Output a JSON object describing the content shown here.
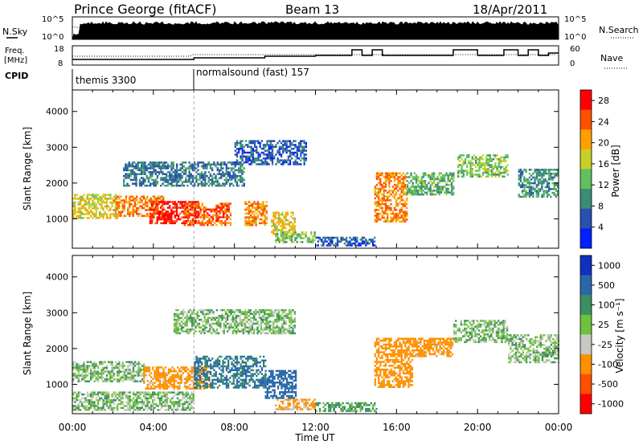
{
  "header": {
    "title": "Prince George (fitACF)",
    "beam": "Beam 13",
    "date": "18/Apr/2011"
  },
  "top_panels": {
    "nsky": {
      "label": "N.Sky",
      "y_ticks": [
        "10^5",
        "10^0"
      ]
    },
    "nsearch": {
      "label": "N.Search",
      "y_ticks": [
        "10^5",
        "10^0"
      ]
    },
    "freq": {
      "label_line1": "Freq.",
      "label_line2": "[MHz]",
      "y_ticks": [
        "18",
        "8"
      ]
    },
    "nave": {
      "label": "Nave",
      "y_ticks": [
        "60",
        "0"
      ]
    },
    "cpid": {
      "label": "CPID",
      "segments": [
        {
          "name": "themis 3300",
          "start_hour": 0
        },
        {
          "name": "normalsound (fast) 157",
          "start_hour": 6
        }
      ]
    }
  },
  "chart_data": [
    {
      "type": "heatmap",
      "title": "Power",
      "ylabel": "Slant Range [km]",
      "xlabel": "Time UT",
      "x_ticks": [
        "00:00",
        "04:00",
        "08:00",
        "12:00",
        "16:00",
        "20:00",
        "00:00"
      ],
      "xlim_hours": [
        0,
        24
      ],
      "ylim": [
        180,
        4600
      ],
      "y_ticks": [
        1000,
        2000,
        3000,
        4000
      ],
      "colorbar": {
        "label": "Power [dB]",
        "ticks": [
          "4",
          "8",
          "12",
          "16",
          "20",
          "24",
          "28"
        ],
        "range": [
          0,
          30
        ],
        "colors": [
          "#0020ff",
          "#2850b0",
          "#3c8c78",
          "#5fc060",
          "#c8d028",
          "#ffa000",
          "#ff5000",
          "#ff0000"
        ]
      },
      "regions": [
        {
          "t0": 0.0,
          "t1": 2.2,
          "r0": 1050,
          "r1": 1700,
          "value": 18
        },
        {
          "t0": 2.0,
          "t1": 4.5,
          "r0": 1100,
          "r1": 1650,
          "value": 22
        },
        {
          "t0": 3.8,
          "t1": 6.2,
          "r0": 900,
          "r1": 1500,
          "value": 28
        },
        {
          "t0": 5.5,
          "t1": 7.8,
          "r0": 850,
          "r1": 1450,
          "value": 24
        },
        {
          "t0": 8.5,
          "t1": 9.6,
          "r0": 800,
          "r1": 1500,
          "value": 22
        },
        {
          "t0": 9.8,
          "t1": 11.0,
          "r0": 600,
          "r1": 1200,
          "value": 18
        },
        {
          "t0": 10.0,
          "t1": 12.0,
          "r0": 350,
          "r1": 650,
          "value": 14
        },
        {
          "t0": 14.9,
          "t1": 16.5,
          "r0": 900,
          "r1": 2300,
          "value": 22
        },
        {
          "t0": 16.5,
          "t1": 18.8,
          "r0": 1700,
          "r1": 2300,
          "value": 12
        },
        {
          "t0": 19.0,
          "t1": 21.5,
          "r0": 2200,
          "r1": 2800,
          "value": 14
        },
        {
          "t0": 22.0,
          "t1": 24.0,
          "r0": 1600,
          "r1": 2400,
          "value": 10
        },
        {
          "t0": 2.5,
          "t1": 8.5,
          "r0": 1900,
          "r1": 2600,
          "value": 8
        },
        {
          "t0": 12.0,
          "t1": 15.0,
          "r0": 250,
          "r1": 500,
          "value": 6
        },
        {
          "t0": 8.0,
          "t1": 11.5,
          "r0": 2500,
          "r1": 3200,
          "value": 6
        }
      ]
    },
    {
      "type": "heatmap",
      "title": "Velocity",
      "ylabel": "Slant Range [km]",
      "xlabel": "Time UT",
      "x_ticks": [
        "00:00",
        "04:00",
        "08:00",
        "12:00",
        "16:00",
        "20:00",
        "00:00"
      ],
      "xlim_hours": [
        0,
        24
      ],
      "ylim": [
        180,
        4600
      ],
      "y_ticks": [
        1000,
        2000,
        3000,
        4000
      ],
      "colorbar": {
        "label": "Velocity [m s⁻¹]",
        "ticks": [
          "1000",
          "500",
          "100",
          "25",
          "-25",
          "-100",
          "-500",
          "-1000"
        ],
        "colors": [
          "#1030c0",
          "#2868a8",
          "#3c9060",
          "#70c040",
          "#c8c8c0",
          "#ff9000",
          "#ff5000",
          "#ff0000"
        ]
      },
      "regions": [
        {
          "t0": 0.0,
          "t1": 3.5,
          "r0": 1100,
          "r1": 1650,
          "value": 0
        },
        {
          "t0": 3.5,
          "t1": 6.8,
          "r0": 900,
          "r1": 1500,
          "value": -150
        },
        {
          "t0": 6.0,
          "t1": 9.5,
          "r0": 900,
          "r1": 1800,
          "value": 120
        },
        {
          "t0": 9.5,
          "t1": 11.0,
          "r0": 600,
          "r1": 1400,
          "value": 300
        },
        {
          "t0": 10.0,
          "t1": 12.0,
          "r0": 300,
          "r1": 600,
          "value": -120
        },
        {
          "t0": 12.0,
          "t1": 15.0,
          "r0": 250,
          "r1": 500,
          "value": 50
        },
        {
          "t0": 14.9,
          "t1": 16.8,
          "r0": 900,
          "r1": 2300,
          "value": -200
        },
        {
          "t0": 16.8,
          "t1": 18.8,
          "r0": 1800,
          "r1": 2300,
          "value": -150
        },
        {
          "t0": 18.8,
          "t1": 21.5,
          "r0": 2200,
          "r1": 2800,
          "value": 0
        },
        {
          "t0": 21.5,
          "t1": 24.0,
          "r0": 1600,
          "r1": 2400,
          "value": 0
        },
        {
          "t0": 0.0,
          "t1": 6.0,
          "r0": 300,
          "r1": 800,
          "value": 0
        },
        {
          "t0": 5.0,
          "t1": 11.0,
          "r0": 2400,
          "r1": 3100,
          "value": 0
        }
      ]
    }
  ]
}
